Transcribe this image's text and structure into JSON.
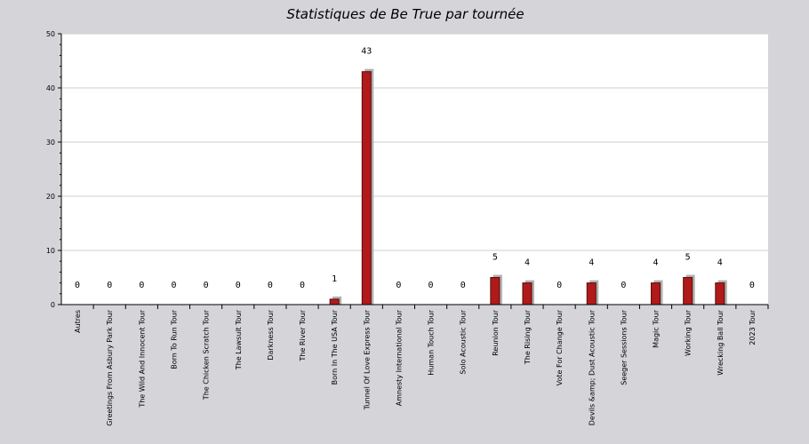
{
  "chart_data": {
    "type": "bar",
    "title": "Statistiques de Be True par tournée",
    "xlabel": "",
    "ylabel": "",
    "ylim": [
      0,
      50
    ],
    "yticks": [
      "0",
      "10",
      "20",
      "30",
      "40",
      "50"
    ],
    "grid": true,
    "legend": "none",
    "categories": [
      "Autres",
      "Greetings From Asbury Park Tour",
      "The Wild And Innocent Tour",
      "Born To Run Tour",
      "The Chicken Scratch Tour",
      "The Lawsuit Tour",
      "Darkness Tour",
      "The River Tour",
      "Born In The USA Tour",
      "Tunnel Of Love Express Tour",
      "Amnesty International Tour",
      "Human Touch Tour",
      "Solo Acoustic Tour",
      "Reunion Tour",
      "The Rising Tour",
      "Vote For Change Tour",
      "Devils &amp; Dust Acoustic Tour",
      "Seeger Sessions Tour",
      "Magic Tour",
      "Working Tour",
      "Wrecking Ball Tour",
      "2023 Tour"
    ],
    "values": [
      0,
      0,
      0,
      0,
      0,
      0,
      0,
      0,
      1,
      43,
      0,
      0,
      0,
      5,
      4,
      0,
      4,
      0,
      4,
      5,
      4,
      0
    ],
    "colors": {
      "bar": "#b01a1a",
      "bar_stroke": "#5a0a0a",
      "shadow": "#b0b0b0",
      "plot_bg": "#ffffff",
      "page_bg": "#d5d4d9",
      "grid": "#cfcfcf",
      "axis": "#000000"
    }
  }
}
